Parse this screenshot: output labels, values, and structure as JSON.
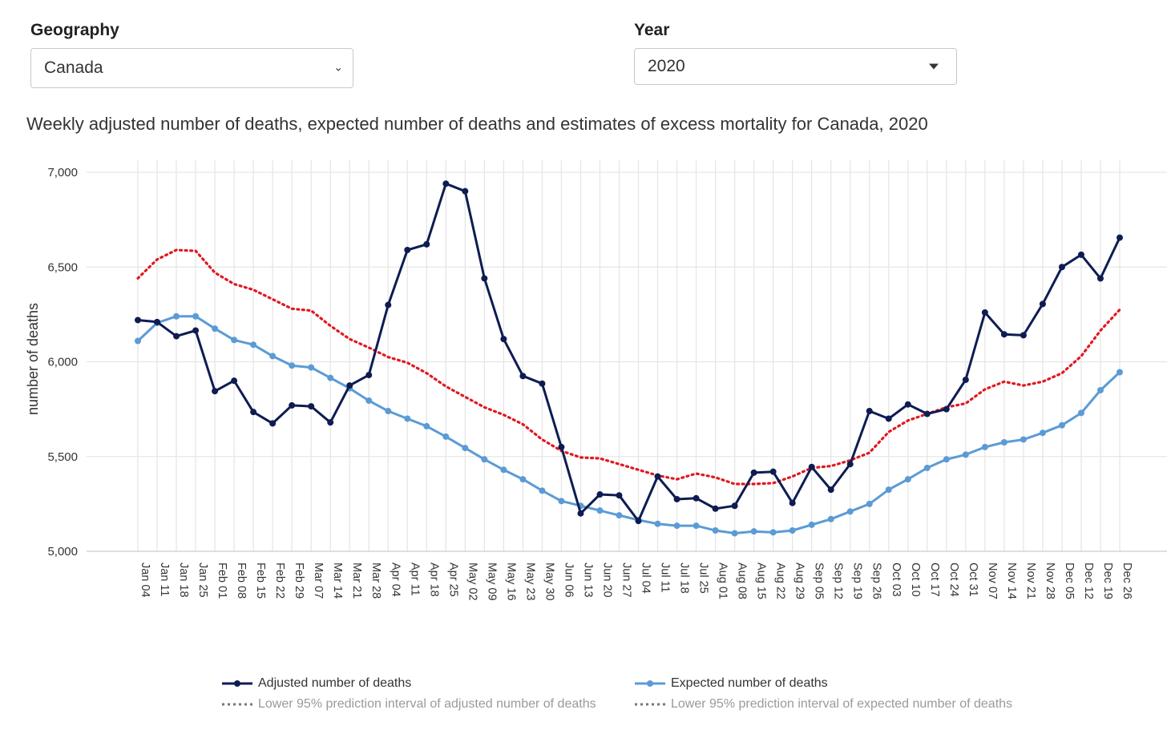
{
  "filters": {
    "geography": {
      "label": "Geography",
      "value": "Canada"
    },
    "year": {
      "label": "Year",
      "value": "2020"
    }
  },
  "colors": {
    "adjusted": "#0e1c52",
    "expected": "#5b9bd5",
    "upper_interval": "#e0191f",
    "grid": "#e6e6e6",
    "inactive": "#9a9a9a"
  },
  "legend": [
    {
      "label": "Adjusted number of deaths",
      "style": "solid-marker",
      "color": "#0e1c52",
      "active": true
    },
    {
      "label": "Expected number of deaths",
      "style": "solid-marker",
      "color": "#5b9bd5",
      "active": true
    },
    {
      "label": "Lower 95% prediction interval of adjusted number of deaths",
      "style": "dotted",
      "color": "#9a9a9a",
      "active": false
    },
    {
      "label": "Lower 95% prediction interval of expected number of deaths",
      "style": "dotted",
      "color": "#9a9a9a",
      "active": false
    }
  ],
  "chart_data": {
    "type": "line",
    "title": "Weekly adjusted number of deaths, expected number of deaths and estimates of excess mortality for Canada, 2020",
    "ylabel": "number of deaths",
    "xlabel": "",
    "ylim": [
      5000,
      7000
    ],
    "yticks": [
      5000,
      5500,
      6000,
      6500,
      7000
    ],
    "ytick_labels": [
      "5,000",
      "5,500",
      "6,000",
      "6,500",
      "7,000"
    ],
    "grid": true,
    "legend_position": "bottom",
    "x": [
      "Jan 04",
      "Jan 11",
      "Jan 18",
      "Jan 25",
      "Feb 01",
      "Feb 08",
      "Feb 15",
      "Feb 22",
      "Feb 29",
      "Mar 07",
      "Mar 14",
      "Mar 21",
      "Mar 28",
      "Apr 04",
      "Apr 11",
      "Apr 18",
      "Apr 25",
      "May 02",
      "May 09",
      "May 16",
      "May 23",
      "May 30",
      "Jun 06",
      "Jun 13",
      "Jun 20",
      "Jun 27",
      "Jul 04",
      "Jul 11",
      "Jul 18",
      "Jul 25",
      "Aug 01",
      "Aug 08",
      "Aug 15",
      "Aug 22",
      "Aug 29",
      "Sep 05",
      "Sep 12",
      "Sep 19",
      "Sep 26",
      "Oct 03",
      "Oct 10",
      "Oct 17",
      "Oct 24",
      "Oct 31",
      "Nov 07",
      "Nov 14",
      "Nov 21",
      "Nov 28",
      "Dec 05",
      "Dec 12",
      "Dec 19",
      "Dec 26"
    ],
    "series": [
      {
        "name": "Adjusted number of deaths",
        "color": "#0e1c52",
        "markers": true,
        "values": [
          6220,
          6210,
          6135,
          6165,
          5845,
          5900,
          5735,
          5675,
          5770,
          5765,
          5680,
          5875,
          5930,
          6300,
          6590,
          6620,
          6940,
          6900,
          6440,
          6120,
          5925,
          5885,
          5550,
          5200,
          5300,
          5295,
          5160,
          5395,
          5275,
          5280,
          5225,
          5240,
          5415,
          5420,
          5255,
          5445,
          5325,
          5460,
          5740,
          5700,
          5775,
          5725,
          5750,
          5905,
          6260,
          6145,
          6140,
          6305,
          6500,
          6565,
          6440,
          6655
        ]
      },
      {
        "name": "Expected number of deaths",
        "color": "#5b9bd5",
        "markers": true,
        "values": [
          6110,
          6205,
          6240,
          6240,
          6175,
          6115,
          6090,
          6030,
          5980,
          5970,
          5915,
          5860,
          5795,
          5740,
          5700,
          5660,
          5605,
          5545,
          5485,
          5430,
          5380,
          5320,
          5265,
          5240,
          5215,
          5190,
          5165,
          5145,
          5135,
          5135,
          5110,
          5095,
          5105,
          5100,
          5110,
          5140,
          5170,
          5210,
          5250,
          5325,
          5380,
          5440,
          5485,
          5510,
          5550,
          5575,
          5590,
          5625,
          5665,
          5730,
          5850,
          5945
        ]
      },
      {
        "name": "",
        "color": "#e0191f",
        "markers": false,
        "dotted": true,
        "values": [
          6440,
          6540,
          6590,
          6585,
          6470,
          6410,
          6380,
          6330,
          6280,
          6270,
          6190,
          6120,
          6075,
          6025,
          5995,
          5940,
          5870,
          5815,
          5760,
          5720,
          5670,
          5590,
          5530,
          5495,
          5490,
          5460,
          5430,
          5400,
          5380,
          5410,
          5390,
          5355,
          5355,
          5360,
          5395,
          5440,
          5450,
          5480,
          5520,
          5630,
          5690,
          5725,
          5760,
          5780,
          5855,
          5895,
          5875,
          5895,
          5940,
          6030,
          6165,
          6275
        ]
      }
    ]
  }
}
